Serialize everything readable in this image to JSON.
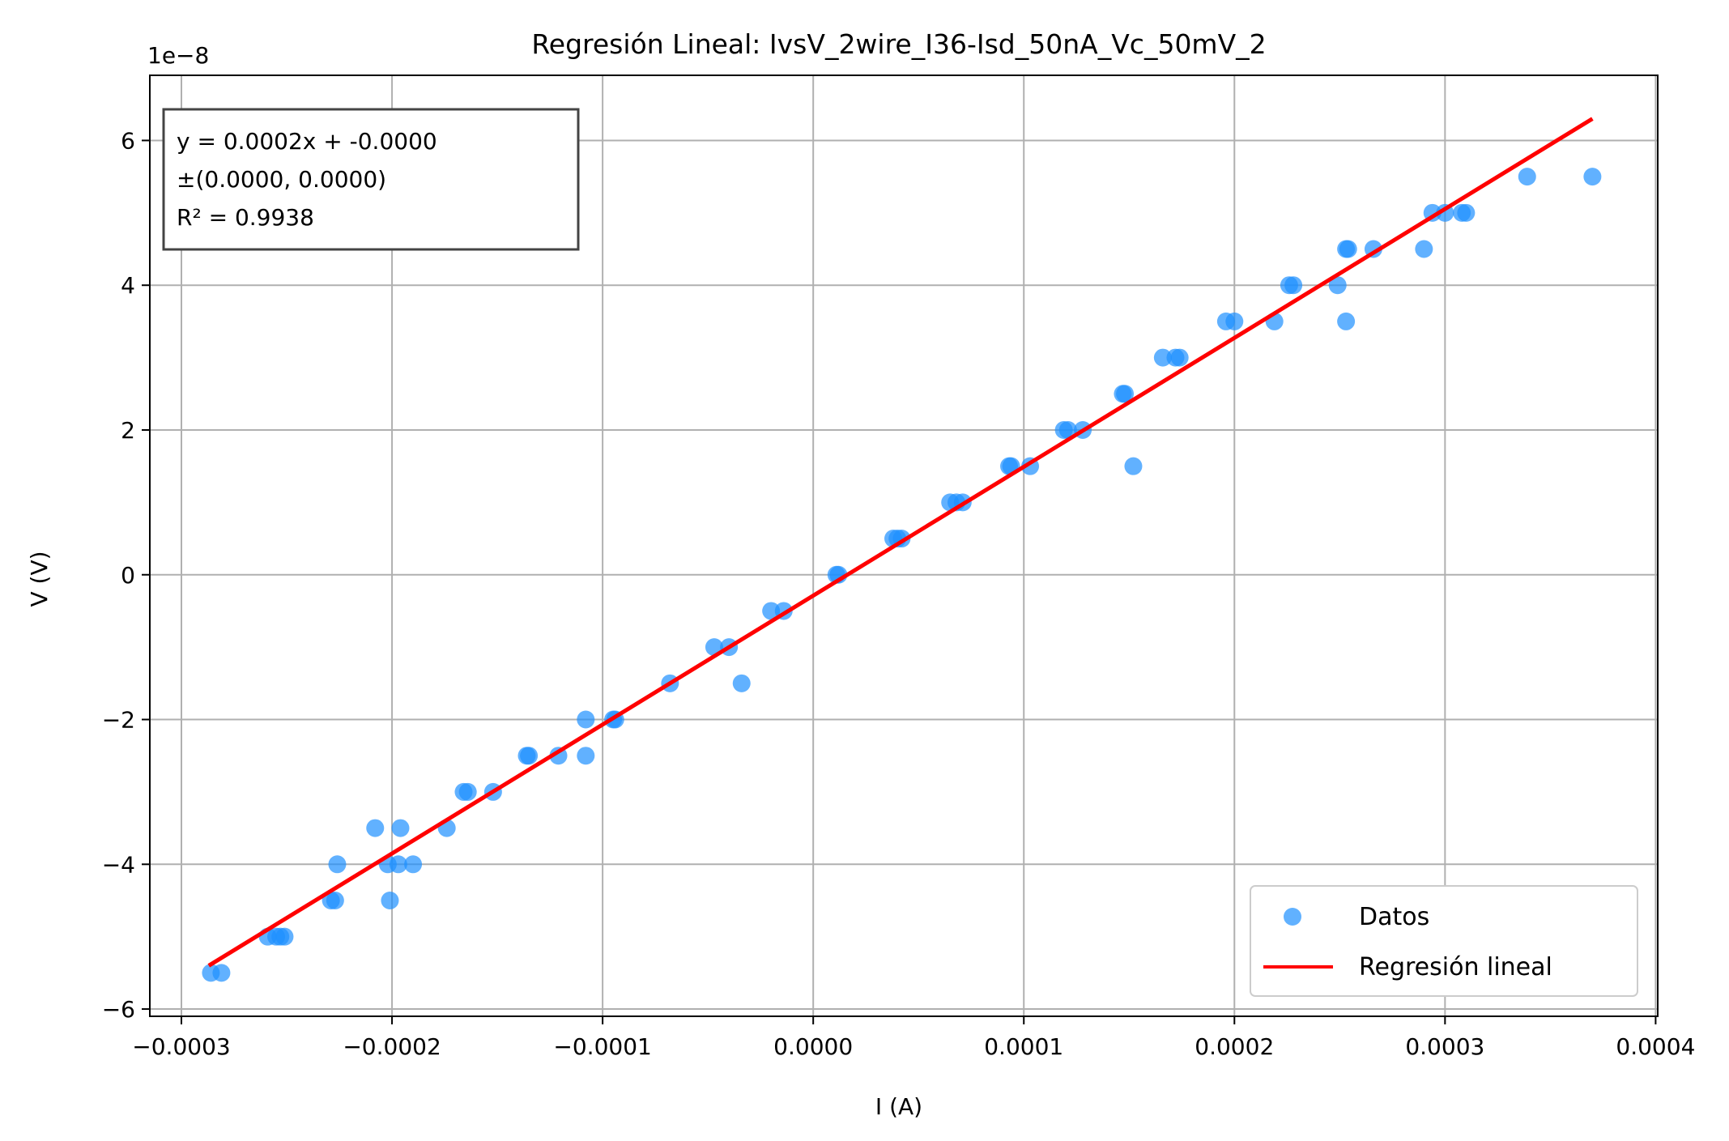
{
  "chart_data": {
    "type": "scatter",
    "title": "Regresión Lineal: IvsV_2wire_I36-Isd_50nA_Vc_50mV_2",
    "xlabel": "I (A)",
    "ylabel": "V (V)",
    "y_offset_label": "1e−8",
    "y_scale_factor": 1e-08,
    "xlim": [
      -0.000315,
      0.000401
    ],
    "ylim": [
      -6.1e-08,
      6.9e-08
    ],
    "grid": true,
    "legend_position": "lower right",
    "x_ticks": [
      -0.0003,
      -0.0002,
      -0.0001,
      0.0,
      0.0001,
      0.0002,
      0.0003,
      0.0004
    ],
    "x_tick_labels": [
      "−0.0003",
      "−0.0002",
      "−0.0001",
      "0.0000",
      "0.0001",
      "0.0002",
      "0.0003",
      "0.0004"
    ],
    "y_ticks": [
      -6e-08,
      -4e-08,
      -2e-08,
      0,
      2e-08,
      4e-08,
      6e-08
    ],
    "y_tick_labels": [
      "−6",
      "−4",
      "−2",
      "0",
      "2",
      "4",
      "6"
    ],
    "annotation": {
      "lines": [
        "y = 0.0002x + -0.0000",
        "±(0.0000, 0.0000)",
        "R² = 0.9938"
      ],
      "color": "#ff0000"
    },
    "series": [
      {
        "name": "Datos",
        "kind": "scatter",
        "color": "#1e90ff",
        "points": [
          [
            -0.000286,
            -5.5e-08
          ],
          [
            -0.000281,
            -5.5e-08
          ],
          [
            -0.000259,
            -5e-08
          ],
          [
            -0.000255,
            -5e-08
          ],
          [
            -0.000253,
            -5e-08
          ],
          [
            -0.000251,
            -5e-08
          ],
          [
            -0.000229,
            -4.5e-08
          ],
          [
            -0.000227,
            -4.5e-08
          ],
          [
            -0.000226,
            -4e-08
          ],
          [
            -0.000208,
            -3.5e-08
          ],
          [
            -0.000202,
            -4e-08
          ],
          [
            -0.000201,
            -4.5e-08
          ],
          [
            -0.000197,
            -4e-08
          ],
          [
            -0.000196,
            -3.5e-08
          ],
          [
            -0.00019,
            -4e-08
          ],
          [
            -0.000174,
            -3.5e-08
          ],
          [
            -0.000166,
            -3e-08
          ],
          [
            -0.000164,
            -3e-08
          ],
          [
            -0.000152,
            -3e-08
          ],
          [
            -0.000136,
            -2.5e-08
          ],
          [
            -0.000135,
            -2.5e-08
          ],
          [
            -0.000121,
            -2.5e-08
          ],
          [
            -0.000108,
            -2e-08
          ],
          [
            -0.000108,
            -2.5e-08
          ],
          [
            -9.5e-05,
            -2e-08
          ],
          [
            -9.4e-05,
            -2e-08
          ],
          [
            -6.8e-05,
            -1.5e-08
          ],
          [
            -4.7e-05,
            -1e-08
          ],
          [
            -4e-05,
            -1e-08
          ],
          [
            -3.4e-05,
            -1.5e-08
          ],
          [
            -2e-05,
            -5e-09
          ],
          [
            -1.4e-05,
            -5e-09
          ],
          [
            1.1e-05,
            0
          ],
          [
            1.2e-05,
            0
          ],
          [
            3.8e-05,
            5e-09
          ],
          [
            4e-05,
            5e-09
          ],
          [
            4.2e-05,
            5e-09
          ],
          [
            6.5e-05,
            1e-08
          ],
          [
            6.8e-05,
            1e-08
          ],
          [
            7.1e-05,
            1e-08
          ],
          [
            9.3e-05,
            1.5e-08
          ],
          [
            9.4e-05,
            1.5e-08
          ],
          [
            0.000103,
            1.5e-08
          ],
          [
            0.000119,
            2e-08
          ],
          [
            0.000121,
            2e-08
          ],
          [
            0.000128,
            2e-08
          ],
          [
            0.000147,
            2.5e-08
          ],
          [
            0.000148,
            2.5e-08
          ],
          [
            0.000152,
            1.5e-08
          ],
          [
            0.000166,
            3e-08
          ],
          [
            0.000172,
            3e-08
          ],
          [
            0.000174,
            3e-08
          ],
          [
            0.000196,
            3.5e-08
          ],
          [
            0.0002,
            3.5e-08
          ],
          [
            0.000219,
            3.5e-08
          ],
          [
            0.000226,
            4e-08
          ],
          [
            0.000228,
            4e-08
          ],
          [
            0.000249,
            4e-08
          ],
          [
            0.000253,
            3.5e-08
          ],
          [
            0.000253,
            4.5e-08
          ],
          [
            0.000254,
            4.5e-08
          ],
          [
            0.000266,
            4.5e-08
          ],
          [
            0.00029,
            4.5e-08
          ],
          [
            0.000294,
            5e-08
          ],
          [
            0.0003,
            5e-08
          ],
          [
            0.000308,
            5e-08
          ],
          [
            0.00031,
            5e-08
          ],
          [
            0.000339,
            5.5e-08
          ],
          [
            0.00037,
            5.5e-08
          ]
        ]
      },
      {
        "name": "Regresión lineal",
        "kind": "line",
        "color": "#ff0000",
        "points": [
          [
            -0.000287,
            -5.4e-08
          ],
          [
            0.00037,
            6.3e-08
          ]
        ]
      }
    ]
  }
}
